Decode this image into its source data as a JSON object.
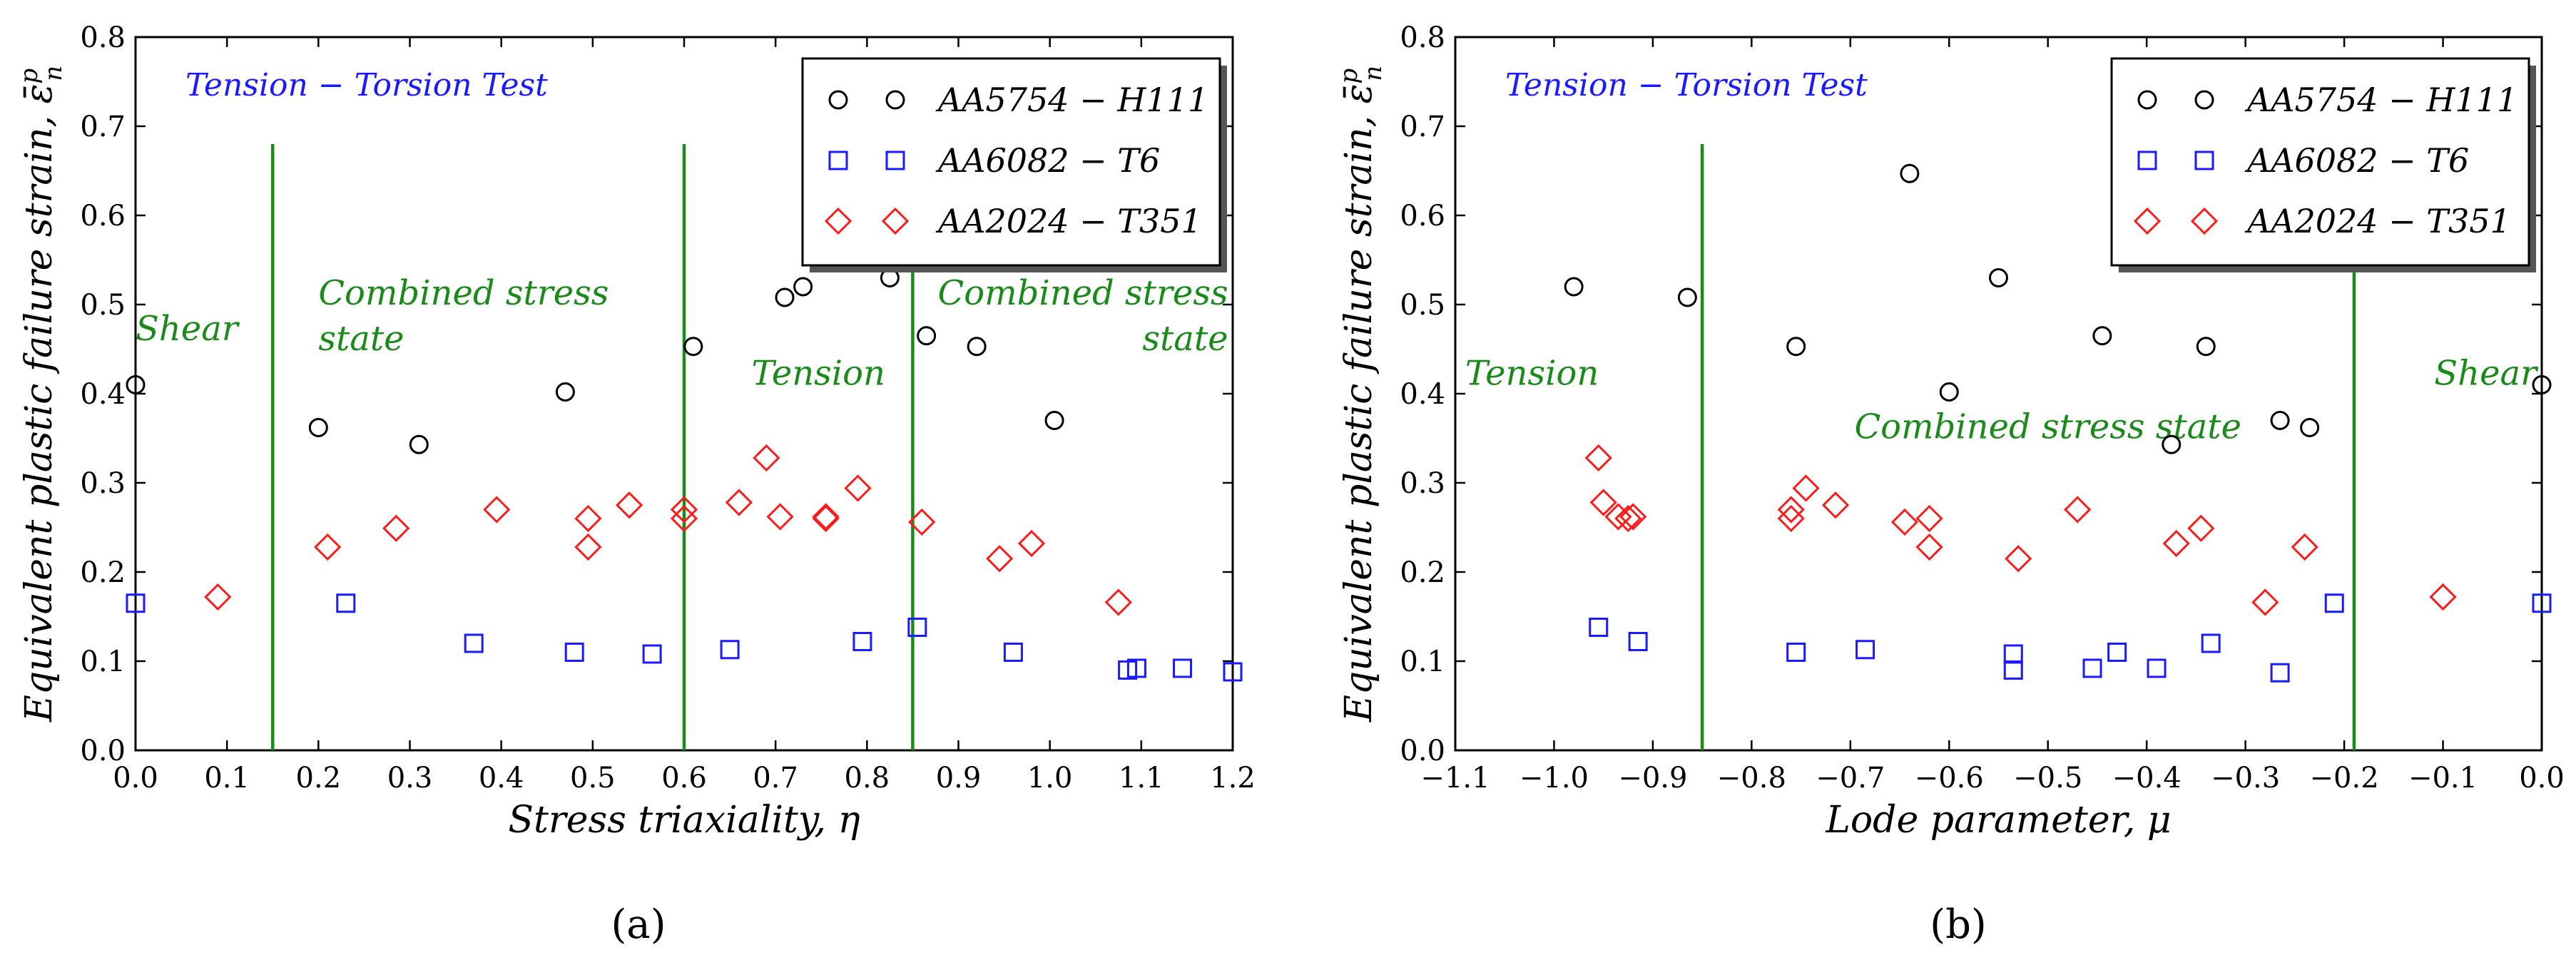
{
  "colors": {
    "aa5754": "#000000",
    "aa6082": "#1a1aff",
    "aa2024": "#ff1a1a",
    "regionLine": "#1a8a1a",
    "annotationBlue": "#1a1aff",
    "annotationGreen": "#1a8a1a"
  },
  "subtitles": [
    "(a)",
    "(b)"
  ],
  "chart_data": [
    {
      "type": "scatter",
      "id": "a",
      "title": "",
      "xlabel": "Stress triaxiality, η",
      "ylabel": "Equivalent plastic failure strain, ε̄",
      "ylabel_superscript": "p",
      "ylabel_subscript": "n",
      "xlim": [
        0.0,
        1.2
      ],
      "ylim": [
        0.0,
        0.8
      ],
      "xticks": [
        "0.0",
        "0.1",
        "0.2",
        "0.3",
        "0.4",
        "0.5",
        "0.6",
        "0.7",
        "0.8",
        "0.9",
        "1.0",
        "1.1",
        "1.2"
      ],
      "yticks": [
        "0.0",
        "0.1",
        "0.2",
        "0.3",
        "0.4",
        "0.5",
        "0.6",
        "0.7",
        "0.8"
      ],
      "test_label": "Tension − Torsion Test",
      "vlines": [
        {
          "x": 0.15,
          "ymax": 0.68
        },
        {
          "x": 0.6,
          "ymax": 0.68
        },
        {
          "x": 0.85,
          "ymax": 0.68
        }
      ],
      "regions": [
        {
          "lines": [
            "Shear"
          ],
          "x": 0.0,
          "y": 0.46,
          "anchor": "start"
        },
        {
          "lines": [
            "Combined stress",
            "state"
          ],
          "x": 0.2,
          "y": 0.5,
          "anchor": "start"
        },
        {
          "lines": [
            "Tension"
          ],
          "x": 0.82,
          "y": 0.41,
          "anchor": "end"
        },
        {
          "lines": [
            "Combined stress",
            "state"
          ],
          "x": 1.195,
          "y": 0.5,
          "anchor": "end"
        }
      ],
      "legend": {
        "location": "top-right"
      },
      "series": [
        {
          "name": "AA5754 − H111",
          "marker": "circle",
          "x": [
            0.0,
            0.2,
            0.31,
            0.47,
            0.61,
            0.71,
            0.73,
            0.825,
            0.865,
            0.92,
            1.005
          ],
          "y": [
            0.41,
            0.362,
            0.343,
            0.402,
            0.453,
            0.508,
            0.52,
            0.53,
            0.465,
            0.453,
            0.37
          ]
        },
        {
          "name": "AA6082 − T6",
          "marker": "square",
          "x": [
            0.0,
            0.23,
            0.37,
            0.48,
            0.565,
            0.65,
            0.795,
            0.855,
            0.96,
            1.085,
            1.095,
            1.145,
            1.2
          ],
          "y": [
            0.165,
            0.165,
            0.12,
            0.11,
            0.108,
            0.113,
            0.122,
            0.138,
            0.11,
            0.09,
            0.092,
            0.092,
            0.088
          ]
        },
        {
          "name": "AA2024 − T351",
          "marker": "diamond",
          "x": [
            0.09,
            0.21,
            0.285,
            0.395,
            0.495,
            0.495,
            0.54,
            0.6,
            0.6,
            0.66,
            0.69,
            0.705,
            0.755,
            0.755,
            0.79,
            0.86,
            0.945,
            0.98,
            1.075
          ],
          "y": [
            0.172,
            0.228,
            0.249,
            0.27,
            0.26,
            0.228,
            0.275,
            0.26,
            0.27,
            0.278,
            0.328,
            0.262,
            0.262,
            0.26,
            0.294,
            0.256,
            0.215,
            0.232,
            0.166
          ]
        }
      ]
    },
    {
      "type": "scatter",
      "id": "b",
      "title": "",
      "xlabel": "Lode parameter, μ",
      "ylabel": "Equivalent plastic failure strain, ε̄",
      "ylabel_superscript": "p",
      "ylabel_subscript": "n",
      "xlim": [
        -1.1,
        0.0
      ],
      "ylim": [
        0.0,
        0.8
      ],
      "xticks": [
        "−1.1",
        "−1.0",
        "−0.9",
        "−0.8",
        "−0.7",
        "−0.6",
        "−0.5",
        "−0.4",
        "−0.3",
        "−0.2",
        "−0.1",
        "0.0"
      ],
      "yticks": [
        "0.0",
        "0.1",
        "0.2",
        "0.3",
        "0.4",
        "0.5",
        "0.6",
        "0.7",
        "0.8"
      ],
      "test_label": "Tension − Torsion Test",
      "vlines": [
        {
          "x": -0.85,
          "ymax": 0.68
        },
        {
          "x": -0.19,
          "ymax": 0.68
        }
      ],
      "regions": [
        {
          "lines": [
            "Tension"
          ],
          "x": -1.09,
          "y": 0.41,
          "anchor": "start"
        },
        {
          "lines": [
            "Combined stress state"
          ],
          "x": -0.5,
          "y": 0.35,
          "anchor": "middle"
        },
        {
          "lines": [
            "Shear"
          ],
          "x": -0.005,
          "y": 0.41,
          "anchor": "end"
        }
      ],
      "legend": {
        "location": "top-right"
      },
      "series": [
        {
          "name": "AA5754 − H111",
          "marker": "circle",
          "x": [
            -0.98,
            -0.865,
            -0.755,
            -0.64,
            -0.55,
            -0.6,
            -0.445,
            -0.34,
            -0.375,
            -0.265,
            -0.235,
            0.0
          ],
          "y": [
            0.52,
            0.508,
            0.453,
            0.647,
            0.53,
            0.402,
            0.465,
            0.453,
            0.343,
            0.37,
            0.362,
            0.41
          ]
        },
        {
          "name": "AA6082 − T6",
          "marker": "square",
          "x": [
            -0.955,
            -0.915,
            -0.755,
            -0.685,
            -0.535,
            -0.535,
            -0.455,
            -0.43,
            -0.39,
            -0.335,
            -0.265,
            -0.21,
            0.0
          ],
          "y": [
            0.138,
            0.122,
            0.11,
            0.113,
            0.108,
            0.09,
            0.092,
            0.11,
            0.092,
            0.12,
            0.087,
            0.165,
            0.165
          ]
        },
        {
          "name": "AA2024 − T351",
          "marker": "diamond",
          "x": [
            -0.955,
            -0.95,
            -0.935,
            -0.925,
            -0.92,
            -0.76,
            -0.76,
            -0.745,
            -0.715,
            -0.645,
            -0.62,
            -0.62,
            -0.53,
            -0.47,
            -0.37,
            -0.345,
            -0.28,
            -0.24,
            -0.1
          ],
          "y": [
            0.328,
            0.278,
            0.262,
            0.26,
            0.262,
            0.27,
            0.26,
            0.294,
            0.275,
            0.256,
            0.26,
            0.228,
            0.215,
            0.27,
            0.232,
            0.249,
            0.166,
            0.228,
            0.172
          ]
        }
      ]
    }
  ]
}
